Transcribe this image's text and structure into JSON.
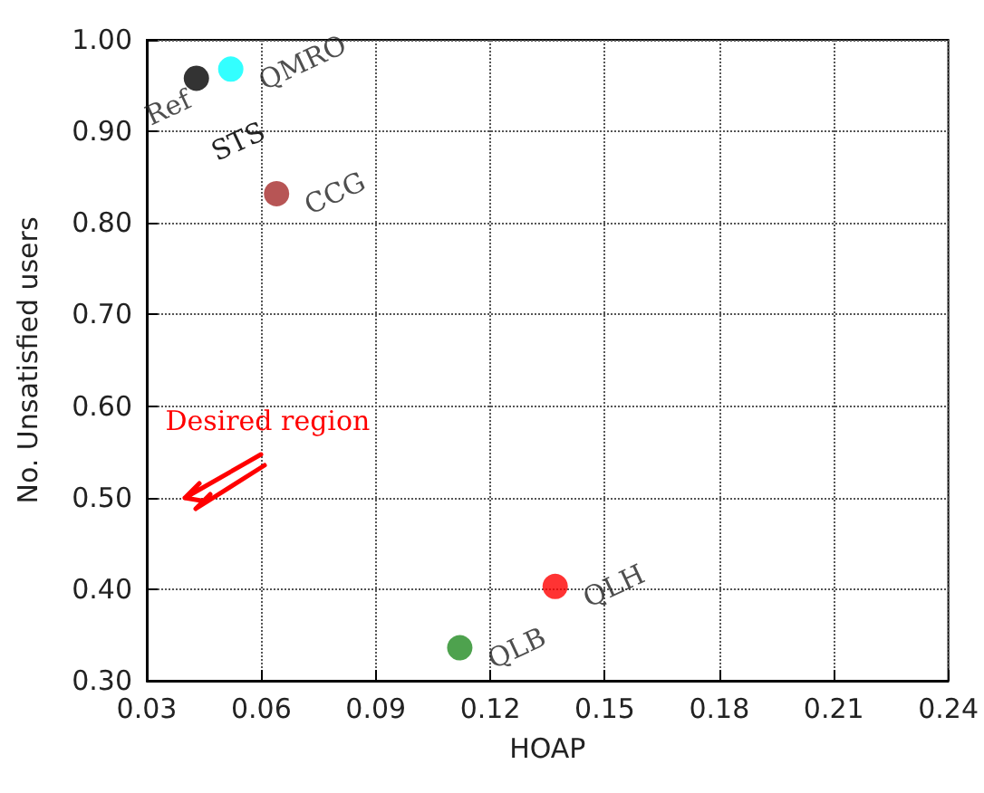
{
  "chart_data": {
    "type": "scatter",
    "xlabel": "HOAP",
    "ylabel": "No. Unsatisfied users",
    "xlim": [
      0.03,
      0.24
    ],
    "xticks": [
      {
        "value": 0.03,
        "label": "0.03"
      },
      {
        "value": 0.06,
        "label": "0.06"
      },
      {
        "value": 0.09,
        "label": "0.09"
      },
      {
        "value": 0.12,
        "label": "0.12"
      },
      {
        "value": 0.15,
        "label": "0.15"
      },
      {
        "value": 0.18,
        "label": "0.18"
      },
      {
        "value": 0.21,
        "label": "0.21"
      },
      {
        "value": 0.24,
        "label": "0.24"
      }
    ],
    "ylim": [
      0.3,
      1.0
    ],
    "yticks": [
      {
        "value": 0.3,
        "label": "0.30"
      },
      {
        "value": 0.4,
        "label": "0.40"
      },
      {
        "value": 0.5,
        "label": "0.50"
      },
      {
        "value": 0.6,
        "label": "0.60"
      },
      {
        "value": 0.7,
        "label": "0.70"
      },
      {
        "value": 0.8,
        "label": "0.80"
      },
      {
        "value": 0.9,
        "label": "0.90"
      },
      {
        "value": 1.0,
        "label": "1.00"
      }
    ],
    "grid": true,
    "legend": false,
    "marker": "circle",
    "series": [
      {
        "name": "Ref",
        "color": "#000000",
        "x": [
          0.043
        ],
        "values": [
          0.958
        ]
      },
      {
        "name": "QMRO",
        "color": "#00ffff",
        "x": [
          0.052
        ],
        "values": [
          0.968
        ]
      },
      {
        "name": "CCG",
        "color": "#a52a2a",
        "x": [
          0.064
        ],
        "values": [
          0.832
        ]
      },
      {
        "name": "QLB",
        "color": "#228b22",
        "x": [
          0.112
        ],
        "values": [
          0.336
        ]
      },
      {
        "name": "QLH",
        "color": "#ff0000",
        "x": [
          0.137
        ],
        "values": [
          0.403
        ]
      }
    ],
    "annotations": [
      {
        "text": "STS",
        "x": 0.064,
        "y": 0.832
      },
      "Desired region"
    ]
  }
}
